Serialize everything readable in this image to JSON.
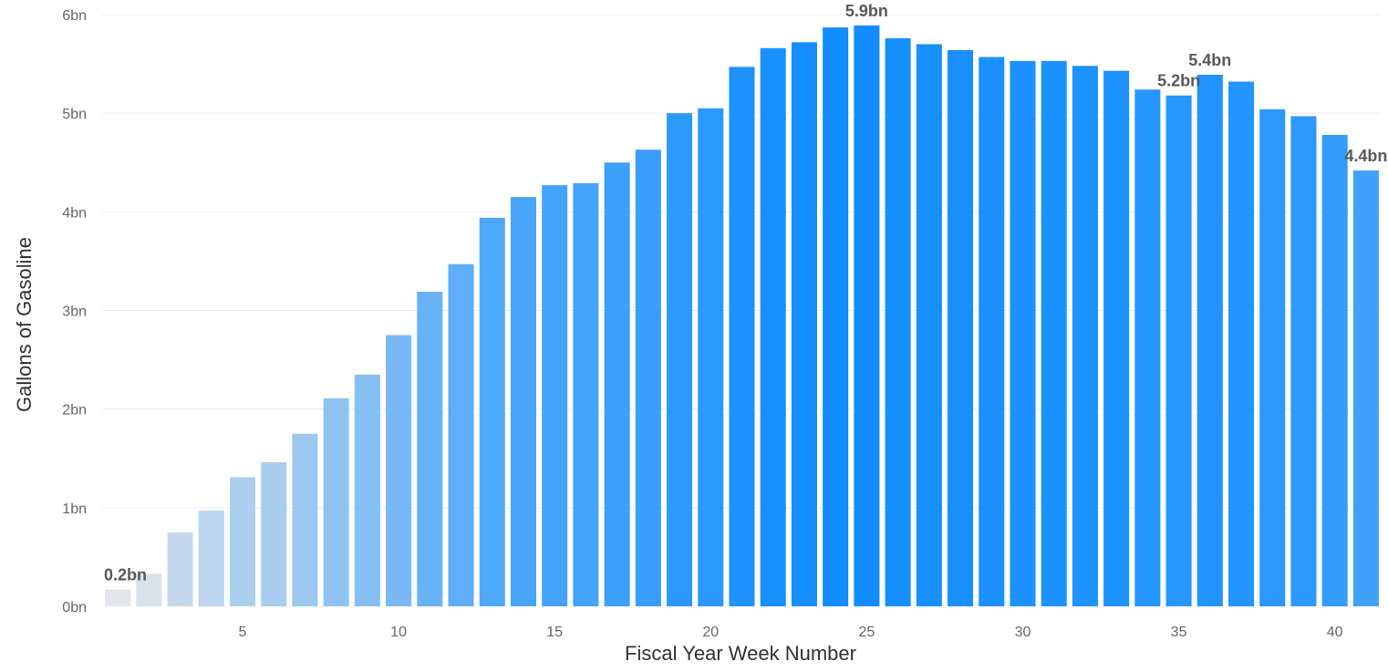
{
  "chart_data": {
    "type": "bar",
    "title": "",
    "xlabel": "Fiscal Year Week Number",
    "ylabel": "Gallons of Gasoline",
    "x": [
      1,
      2,
      3,
      4,
      5,
      6,
      7,
      8,
      9,
      10,
      11,
      12,
      13,
      14,
      15,
      16,
      17,
      18,
      19,
      20,
      21,
      22,
      23,
      24,
      25,
      26,
      27,
      28,
      29,
      30,
      31,
      32,
      33,
      34,
      35,
      36,
      37,
      38,
      39,
      40,
      41
    ],
    "values": [
      0.17,
      0.33,
      0.75,
      0.97,
      1.31,
      1.46,
      1.75,
      2.11,
      2.35,
      2.75,
      3.19,
      3.47,
      3.94,
      4.15,
      4.27,
      4.29,
      4.5,
      4.63,
      5.0,
      5.05,
      5.47,
      5.66,
      5.72,
      5.87,
      5.89,
      5.76,
      5.7,
      5.64,
      5.57,
      5.53,
      5.53,
      5.48,
      5.43,
      5.24,
      5.18,
      5.39,
      5.32,
      5.04,
      4.97,
      4.78,
      4.42
    ],
    "unit_suffix": "bn",
    "ylim": [
      0,
      6
    ],
    "y_ticks": [
      0,
      1,
      2,
      3,
      4,
      5,
      6
    ],
    "y_tick_labels": [
      "0bn",
      "1bn",
      "2bn",
      "3bn",
      "4bn",
      "5bn",
      "6bn"
    ],
    "x_ticks": [
      5,
      10,
      15,
      20,
      25,
      30,
      35,
      40
    ],
    "x_tick_labels": [
      "5",
      "10",
      "15",
      "20",
      "25",
      "30",
      "35",
      "40"
    ],
    "grid": true,
    "legend": "none",
    "color_scale": {
      "low": "#e2e6ea",
      "high": "#118dff"
    },
    "annotations": [
      {
        "x": 1,
        "text": "0.2bn"
      },
      {
        "x": 25,
        "text": "5.9bn"
      },
      {
        "x": 35,
        "text": "5.2bn"
      },
      {
        "x": 36,
        "text": "5.4bn"
      },
      {
        "x": 41,
        "text": "4.4bn"
      }
    ]
  }
}
